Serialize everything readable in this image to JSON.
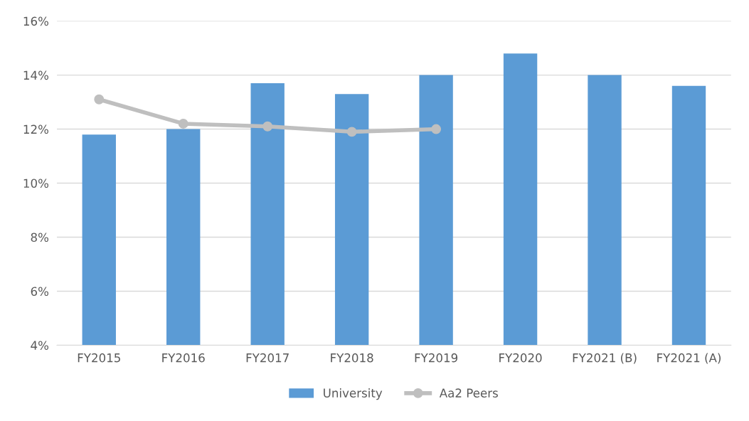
{
  "chart_data": {
    "type": "bar",
    "categories": [
      "FY2015",
      "FY2016",
      "FY2017",
      "FY2018",
      "FY2019",
      "FY2020",
      "FY2021 (B)",
      "FY2021 (A)"
    ],
    "series": [
      {
        "name": "University",
        "color": "#5b9bd5",
        "values": [
          11.8,
          12.0,
          13.7,
          13.3,
          14.0,
          14.8,
          14.0,
          13.6
        ]
      },
      {
        "name": "Aa2 Peers",
        "color": "#bfbfbf",
        "type": "line",
        "values": [
          13.1,
          12.2,
          12.1,
          11.9,
          12.0,
          null,
          null,
          null
        ]
      }
    ],
    "ylim": [
      4,
      16
    ],
    "yticks": [
      {
        "value": 4,
        "label": "4%"
      },
      {
        "value": 6,
        "label": "6%"
      },
      {
        "value": 8,
        "label": "8%"
      },
      {
        "value": 10,
        "label": "10%"
      },
      {
        "value": 12,
        "label": "12%"
      },
      {
        "value": 14,
        "label": "14%"
      },
      {
        "value": 16,
        "label": "16%"
      }
    ],
    "grid": "y",
    "legend": "bottom",
    "marker": "circle",
    "line_style": "solid"
  }
}
